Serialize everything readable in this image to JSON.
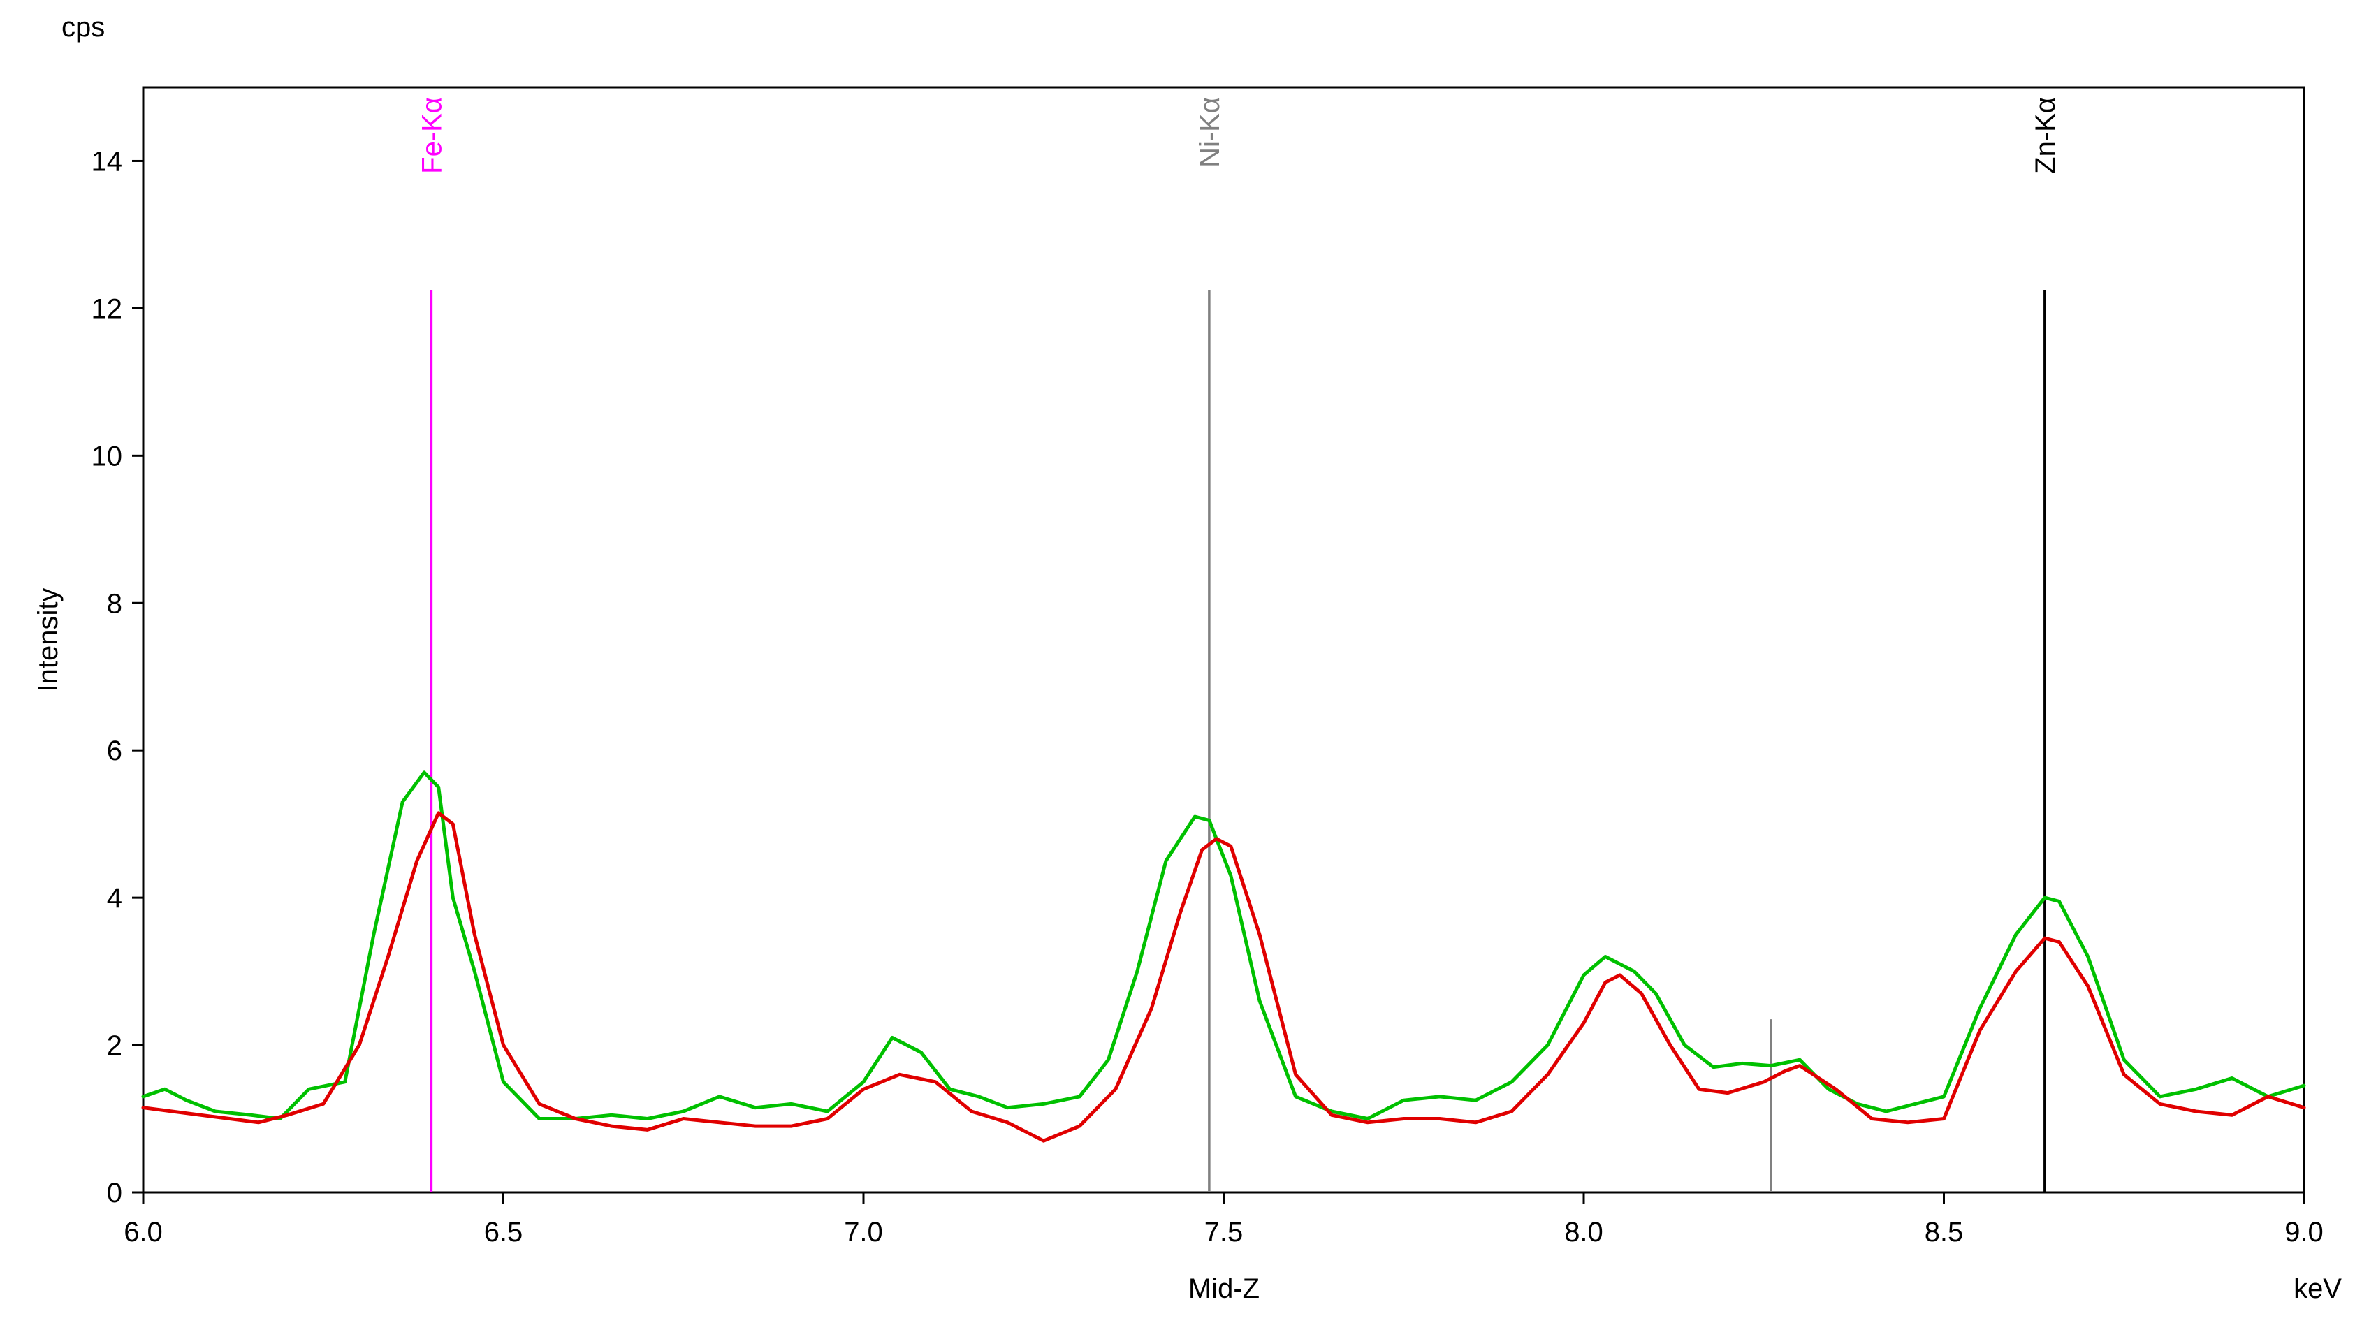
{
  "chart_data": {
    "type": "line",
    "title": "",
    "xlabel": "Mid-Z",
    "x_unit": "keV",
    "ylabel": "Intensity",
    "y_unit": "cps",
    "xlim": [
      6.0,
      9.0
    ],
    "ylim": [
      0,
      15
    ],
    "x_ticks": [
      "6.0",
      "6.5",
      "7.0",
      "7.5",
      "8.0",
      "8.5",
      "9.0"
    ],
    "y_ticks": [
      "0",
      "2",
      "4",
      "6",
      "8",
      "10",
      "12",
      "14"
    ],
    "grid": false,
    "legend": "none",
    "colors": {
      "green": "#00c000",
      "red": "#e00000",
      "fe": "#ff00ff",
      "ni": "#808080",
      "zn": "#000000",
      "minor": "#808080"
    },
    "markers": [
      {
        "label": "Fe-Kα",
        "x": 6.4,
        "y_top": 12.25,
        "color": "#ff00ff"
      },
      {
        "label": "Ni-Kα",
        "x": 7.48,
        "y_top": 12.25,
        "color": "#808080"
      },
      {
        "label": "Zn-Kα",
        "x": 8.64,
        "y_top": 12.25,
        "color": "#000000"
      },
      {
        "label": "",
        "x": 8.26,
        "y_top": 2.35,
        "color": "#808080"
      }
    ],
    "series": [
      {
        "color": "#00c000",
        "x": [
          6.0,
          6.03,
          6.06,
          6.1,
          6.15,
          6.19,
          6.23,
          6.28,
          6.32,
          6.36,
          6.39,
          6.41,
          6.43,
          6.46,
          6.5,
          6.55,
          6.6,
          6.65,
          6.7,
          6.75,
          6.8,
          6.85,
          6.9,
          6.95,
          7.0,
          7.04,
          7.08,
          7.12,
          7.16,
          7.2,
          7.25,
          7.3,
          7.34,
          7.38,
          7.42,
          7.46,
          7.48,
          7.51,
          7.55,
          7.6,
          7.65,
          7.7,
          7.75,
          7.8,
          7.85,
          7.9,
          7.95,
          8.0,
          8.03,
          8.07,
          8.1,
          8.14,
          8.18,
          8.22,
          8.26,
          8.3,
          8.34,
          8.38,
          8.42,
          8.46,
          8.5,
          8.55,
          8.6,
          8.64,
          8.66,
          8.7,
          8.75,
          8.8,
          8.85,
          8.9,
          8.95,
          9.0
        ],
        "y": [
          1.3,
          1.4,
          1.25,
          1.1,
          1.05,
          1.0,
          1.4,
          1.5,
          3.5,
          5.3,
          5.7,
          5.5,
          4.0,
          3.0,
          1.5,
          1.0,
          1.0,
          1.05,
          1.0,
          1.1,
          1.3,
          1.15,
          1.2,
          1.1,
          1.5,
          2.1,
          1.9,
          1.4,
          1.3,
          1.15,
          1.2,
          1.3,
          1.8,
          3.0,
          4.5,
          5.1,
          5.05,
          4.3,
          2.6,
          1.3,
          1.1,
          1.0,
          1.25,
          1.3,
          1.25,
          1.5,
          2.0,
          2.95,
          3.2,
          3.0,
          2.7,
          2.0,
          1.7,
          1.75,
          1.72,
          1.8,
          1.4,
          1.2,
          1.1,
          1.2,
          1.3,
          2.5,
          3.5,
          4.0,
          3.95,
          3.2,
          1.8,
          1.3,
          1.4,
          1.55,
          1.3,
          1.45
        ]
      },
      {
        "color": "#e00000",
        "x": [
          6.0,
          6.04,
          6.08,
          6.12,
          6.16,
          6.2,
          6.25,
          6.3,
          6.34,
          6.38,
          6.41,
          6.43,
          6.46,
          6.5,
          6.55,
          6.6,
          6.65,
          6.7,
          6.75,
          6.8,
          6.85,
          6.9,
          6.95,
          7.0,
          7.05,
          7.1,
          7.15,
          7.2,
          7.25,
          7.3,
          7.35,
          7.4,
          7.44,
          7.47,
          7.49,
          7.51,
          7.55,
          7.6,
          7.65,
          7.7,
          7.75,
          7.8,
          7.85,
          7.9,
          7.95,
          8.0,
          8.03,
          8.05,
          8.08,
          8.12,
          8.16,
          8.2,
          8.25,
          8.28,
          8.3,
          8.35,
          8.4,
          8.45,
          8.5,
          8.55,
          8.6,
          8.64,
          8.66,
          8.7,
          8.75,
          8.8,
          8.85,
          8.9,
          8.95,
          9.0
        ],
        "y": [
          1.15,
          1.1,
          1.05,
          1.0,
          0.95,
          1.05,
          1.2,
          2.0,
          3.2,
          4.5,
          5.15,
          5.0,
          3.5,
          2.0,
          1.2,
          1.0,
          0.9,
          0.85,
          1.0,
          0.95,
          0.9,
          0.9,
          1.0,
          1.4,
          1.6,
          1.5,
          1.1,
          0.95,
          0.7,
          0.9,
          1.4,
          2.5,
          3.8,
          4.65,
          4.8,
          4.7,
          3.5,
          1.6,
          1.05,
          0.95,
          1.0,
          1.0,
          0.95,
          1.1,
          1.6,
          2.3,
          2.85,
          2.95,
          2.7,
          2.0,
          1.4,
          1.35,
          1.5,
          1.65,
          1.72,
          1.4,
          1.0,
          0.95,
          1.0,
          2.2,
          3.0,
          3.45,
          3.4,
          2.8,
          1.6,
          1.2,
          1.1,
          1.05,
          1.3,
          1.15
        ]
      }
    ]
  }
}
